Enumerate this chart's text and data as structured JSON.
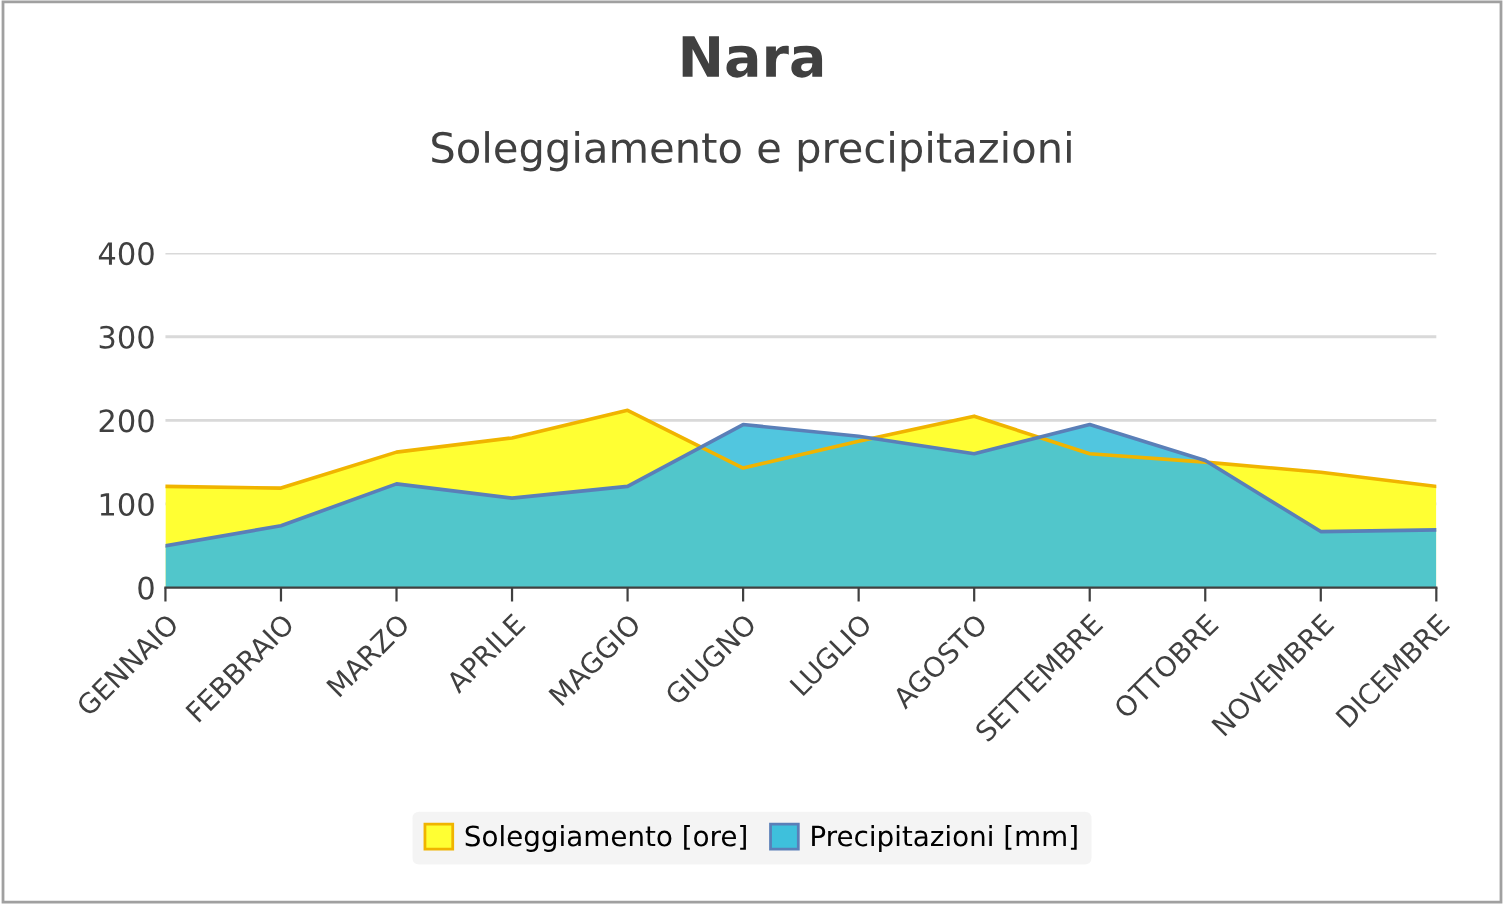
{
  "chart_data": {
    "type": "area",
    "title": "Nara",
    "subtitle": "Soleggiamento e precipitazioni",
    "categories": [
      "GENNAIO",
      "FEBBRAIO",
      "MARZO",
      "APRILE",
      "MAGGIO",
      "GIUGNO",
      "LUGLIO",
      "AGOSTO",
      "SETTEMBRE",
      "OTTOBRE",
      "NOVEMBRE",
      "DICEMBRE"
    ],
    "series": [
      {
        "name": "Soleggiamento [ore]",
        "color": "#ffff33",
        "values": [
          121,
          119,
          162,
          179,
          212,
          143,
          175,
          205,
          160,
          150,
          138,
          121
        ]
      },
      {
        "name": "Precipitazioni [mm]",
        "color": "#3ec0dc",
        "values": [
          50,
          74,
          124,
          107,
          121,
          195,
          181,
          160,
          195,
          152,
          67,
          69
        ]
      }
    ],
    "ylim": [
      0,
      400
    ],
    "yticks": [
      0,
      100,
      200,
      300,
      400
    ],
    "grid": "y",
    "legend": "bottom"
  }
}
